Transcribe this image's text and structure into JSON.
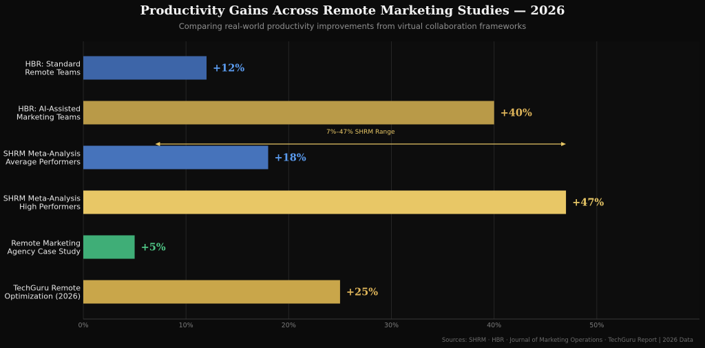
{
  "chart_data": {
    "type": "bar",
    "orientation": "horizontal",
    "title": "Productivity Gains Across Remote Marketing Studies — 2026",
    "subtitle": "Comparing real-world productivity improvements from virtual collaboration frameworks",
    "categories": [
      [
        "HBR: Standard",
        "Remote Teams"
      ],
      [
        "HBR: AI-Assisted",
        "Marketing Teams"
      ],
      [
        "SHRM Meta-Analysis",
        "Average Performers"
      ],
      [
        "SHRM Meta-Analysis",
        "High Performers"
      ],
      [
        "Remote Marketing",
        "Agency Case Study"
      ],
      [
        "TechGuru Remote",
        "Optimization (2026)"
      ]
    ],
    "values": [
      12,
      40,
      18,
      47,
      5,
      25
    ],
    "value_labels": [
      "+12%",
      "+40%",
      "+18%",
      "+47%",
      "+5%",
      "+25%"
    ],
    "bar_colors": [
      "#3d65a8",
      "#b99a48",
      "#4673bb",
      "#e8c766",
      "#3fae77",
      "#c9a64a"
    ],
    "label_colors": [
      "#5b9cf0",
      "#e0b65a",
      "#5b9cf0",
      "#e8c766",
      "#4fc585",
      "#e0b65a"
    ],
    "xlim": [
      0,
      60
    ],
    "xticks": [
      0,
      10,
      20,
      30,
      40,
      50
    ],
    "xtick_labels": [
      "0%",
      "10%",
      "20%",
      "30%",
      "40%",
      "50%"
    ],
    "grid": true,
    "annotation": {
      "text": "7%–47% SHRM Range",
      "x_start": 7,
      "x_end": 47,
      "color": "#e8c766"
    },
    "source": "Sources: SHRM · HBR · Journal of Marketing Operations · TechGuru Report  |  2026 Data"
  }
}
